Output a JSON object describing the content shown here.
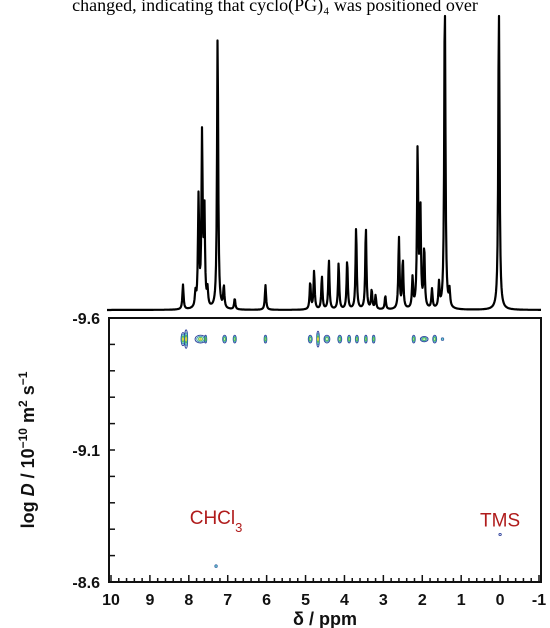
{
  "caption": "changed, indicating that cyclo(PG)₄ was positioned over",
  "chart_data": {
    "type": "scatter",
    "subtype": "2D DOSY NMR spectrum",
    "xlabel": "δ / ppm",
    "ylabel": "log D / 10⁻¹⁰ m² s⁻¹",
    "xlim": [
      10,
      -1
    ],
    "x_reversed": true,
    "ylim": [
      -9.6,
      -8.6
    ],
    "y_reversed": true,
    "xticks": [
      "10",
      "9",
      "8",
      "7",
      "6",
      "5",
      "4",
      "3",
      "2",
      "1",
      "0",
      "-1"
    ],
    "yticks": [
      "-9.6",
      "-9.1",
      "-8.6"
    ],
    "annotations": [
      {
        "text": "CHCl₃",
        "x": 7.3,
        "y": -8.79
      },
      {
        "text": "TMS",
        "x": 0.0,
        "y": -8.78
      }
    ],
    "spectrum_peaks": [
      {
        "ppm": 8.15,
        "intensity": 0.09
      },
      {
        "ppm": 7.83,
        "intensity": 0.05
      },
      {
        "ppm": 7.75,
        "intensity": 0.4
      },
      {
        "ppm": 7.66,
        "intensity": 0.62
      },
      {
        "ppm": 7.6,
        "intensity": 0.35
      },
      {
        "ppm": 7.52,
        "intensity": 0.06
      },
      {
        "ppm": 7.26,
        "intensity": 1.0
      },
      {
        "ppm": 7.1,
        "intensity": 0.08
      },
      {
        "ppm": 6.82,
        "intensity": 0.04
      },
      {
        "ppm": 6.03,
        "intensity": 0.09
      },
      {
        "ppm": 4.88,
        "intensity": 0.1
      },
      {
        "ppm": 4.78,
        "intensity": 0.14
      },
      {
        "ppm": 4.58,
        "intensity": 0.12
      },
      {
        "ppm": 4.4,
        "intensity": 0.18
      },
      {
        "ppm": 4.15,
        "intensity": 0.17
      },
      {
        "ppm": 3.93,
        "intensity": 0.18
      },
      {
        "ppm": 3.7,
        "intensity": 0.3
      },
      {
        "ppm": 3.45,
        "intensity": 0.3
      },
      {
        "ppm": 3.3,
        "intensity": 0.07
      },
      {
        "ppm": 3.2,
        "intensity": 0.05
      },
      {
        "ppm": 2.95,
        "intensity": 0.05
      },
      {
        "ppm": 2.6,
        "intensity": 0.26
      },
      {
        "ppm": 2.5,
        "intensity": 0.18
      },
      {
        "ppm": 2.25,
        "intensity": 0.11
      },
      {
        "ppm": 2.12,
        "intensity": 0.58
      },
      {
        "ppm": 2.05,
        "intensity": 0.37
      },
      {
        "ppm": 1.95,
        "intensity": 0.22
      },
      {
        "ppm": 1.75,
        "intensity": 0.07
      },
      {
        "ppm": 1.57,
        "intensity": 0.09
      },
      {
        "ppm": 1.42,
        "intensity": 1.2
      },
      {
        "ppm": 1.3,
        "intensity": 0.06
      },
      {
        "ppm": 0.03,
        "intensity": 1.2
      }
    ],
    "cross_peaks": [
      {
        "x": 8.15,
        "y": -9.52,
        "w": 0.1,
        "h": 0.05
      },
      {
        "x": 8.07,
        "y": -9.52,
        "w": 0.08,
        "h": 0.07
      },
      {
        "x": 7.7,
        "y": -9.52,
        "w": 0.28,
        "h": 0.03
      },
      {
        "x": 7.57,
        "y": -9.52,
        "w": 0.05,
        "h": 0.03
      },
      {
        "x": 7.08,
        "y": -9.52,
        "w": 0.1,
        "h": 0.03
      },
      {
        "x": 6.82,
        "y": -9.52,
        "w": 0.08,
        "h": 0.03
      },
      {
        "x": 6.03,
        "y": -9.52,
        "w": 0.07,
        "h": 0.03
      },
      {
        "x": 4.88,
        "y": -9.52,
        "w": 0.1,
        "h": 0.03
      },
      {
        "x": 4.68,
        "y": -9.52,
        "w": 0.07,
        "h": 0.06
      },
      {
        "x": 4.45,
        "y": -9.52,
        "w": 0.15,
        "h": 0.03
      },
      {
        "x": 4.12,
        "y": -9.52,
        "w": 0.1,
        "h": 0.03
      },
      {
        "x": 3.88,
        "y": -9.52,
        "w": 0.08,
        "h": 0.03
      },
      {
        "x": 3.68,
        "y": -9.52,
        "w": 0.08,
        "h": 0.03
      },
      {
        "x": 3.45,
        "y": -9.52,
        "w": 0.07,
        "h": 0.03
      },
      {
        "x": 3.25,
        "y": -9.52,
        "w": 0.07,
        "h": 0.03
      },
      {
        "x": 2.22,
        "y": -9.52,
        "w": 0.08,
        "h": 0.03
      },
      {
        "x": 1.95,
        "y": -9.52,
        "w": 0.2,
        "h": 0.02
      },
      {
        "x": 1.68,
        "y": -9.52,
        "w": 0.1,
        "h": 0.03
      },
      {
        "x": 1.48,
        "y": -9.52,
        "w": 0.05,
        "h": 0.01
      },
      {
        "x": 7.3,
        "y": -8.66,
        "w": 0.05,
        "h": 0.01
      },
      {
        "x": 0.0,
        "y": -8.78,
        "w": 0.03,
        "h": 0.005
      }
    ],
    "colors": {
      "spectrum": "#000000",
      "contour_outer": "#2c3f9a",
      "contour_mid": "#3a9bb5",
      "contour_inner": "#58c04a",
      "contour_core": "#d8d040",
      "annotation": "#b01c1c",
      "axes": "#111111"
    }
  }
}
